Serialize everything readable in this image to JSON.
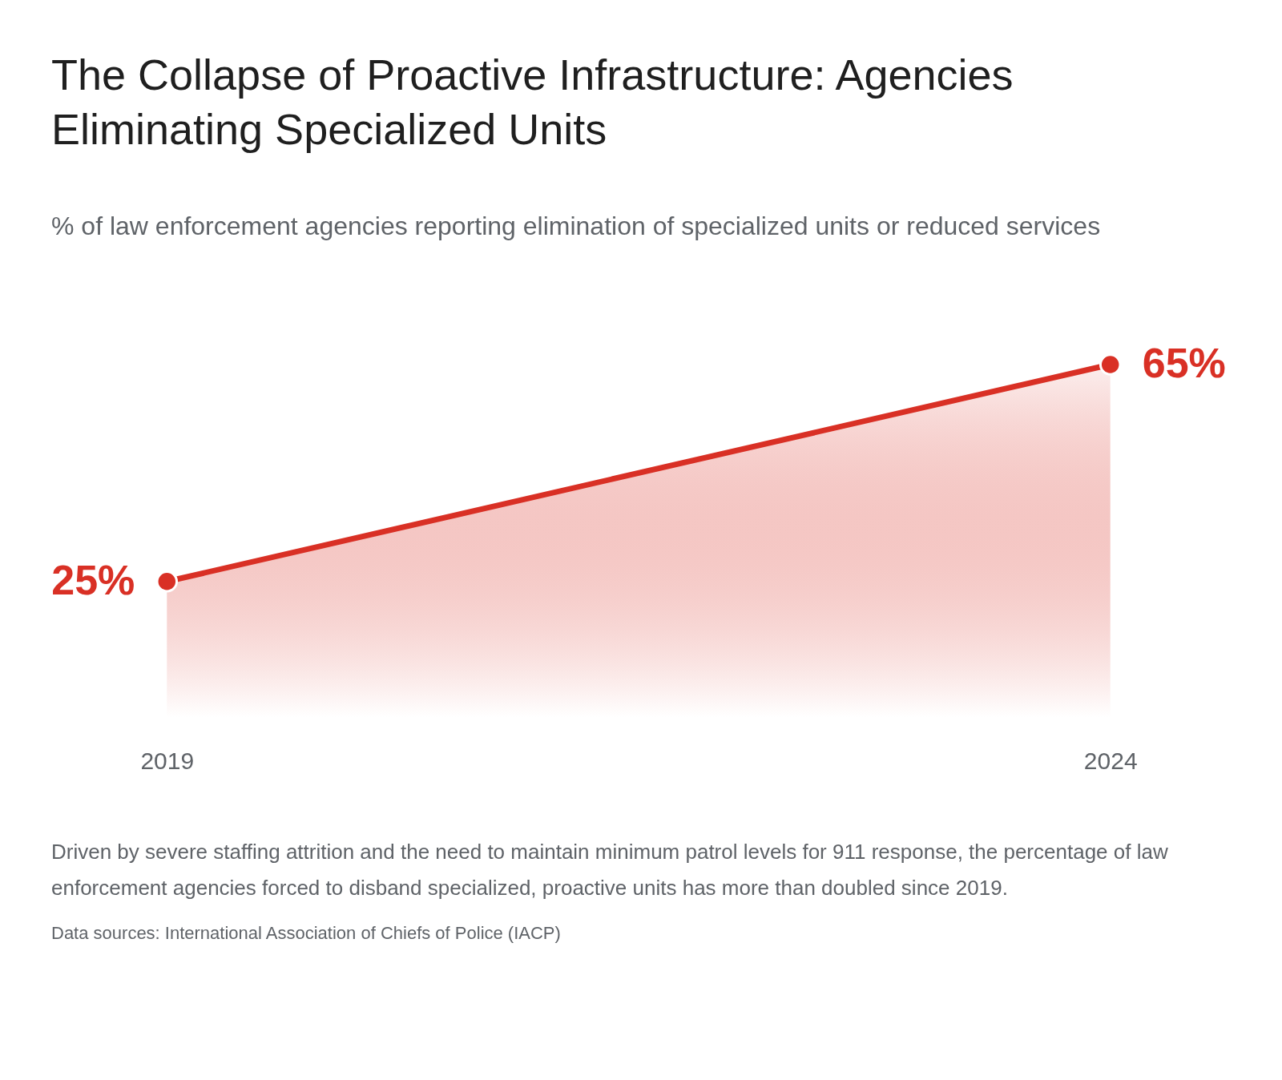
{
  "chart_data": {
    "type": "area",
    "title": "The Collapse of Proactive Infrastructure: Agencies Eliminating Specialized Units",
    "subtitle": "% of law enforcement agencies reporting elimination of specialized units or reduced services",
    "categories": [
      "2019",
      "2024"
    ],
    "series": [
      {
        "color": "#d93025",
        "values": [
          25,
          65
        ],
        "value_labels": [
          "25%",
          "65%"
        ]
      }
    ],
    "grid": false,
    "legend": false,
    "marker": "circle",
    "tick_labels": "x",
    "annotations": [
      "Driven by severe staffing attrition and the need to maintain minimum patrol levels for 911 response, the percentage of law enforcement agencies forced to disband specialized, proactive units has more than doubled since 2019.",
      "Data sources: International Association of Chiefs of Police (IACP)"
    ]
  }
}
